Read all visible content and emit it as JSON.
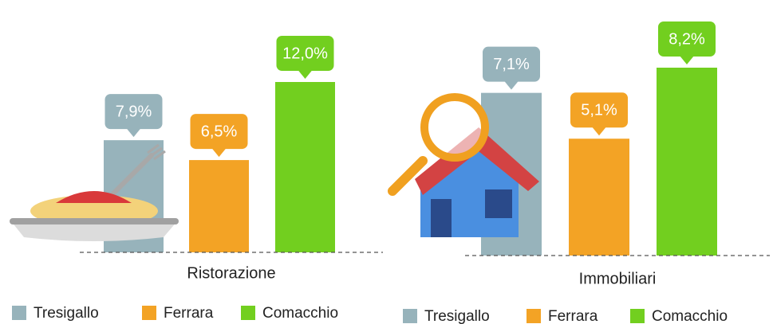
{
  "chart_data": [
    {
      "type": "bar",
      "xlabel": "Ristorazione",
      "categories": [
        "Tresigallo",
        "Ferrara",
        "Comacchio"
      ],
      "values": [
        7.9,
        6.5,
        12.0
      ],
      "value_labels": [
        "7,9%",
        "6,5%",
        "12,0%"
      ],
      "colors": [
        "#97b3bb",
        "#f3a325",
        "#72cf1f"
      ]
    },
    {
      "type": "bar",
      "xlabel": "Immobiliari",
      "categories": [
        "Tresigallo",
        "Ferrara",
        "Comacchio"
      ],
      "values": [
        7.1,
        5.1,
        8.2
      ],
      "value_labels": [
        "7,1%",
        "5,1%",
        "8,2%"
      ],
      "colors": [
        "#97b3bb",
        "#f3a325",
        "#72cf1f"
      ]
    }
  ]
}
